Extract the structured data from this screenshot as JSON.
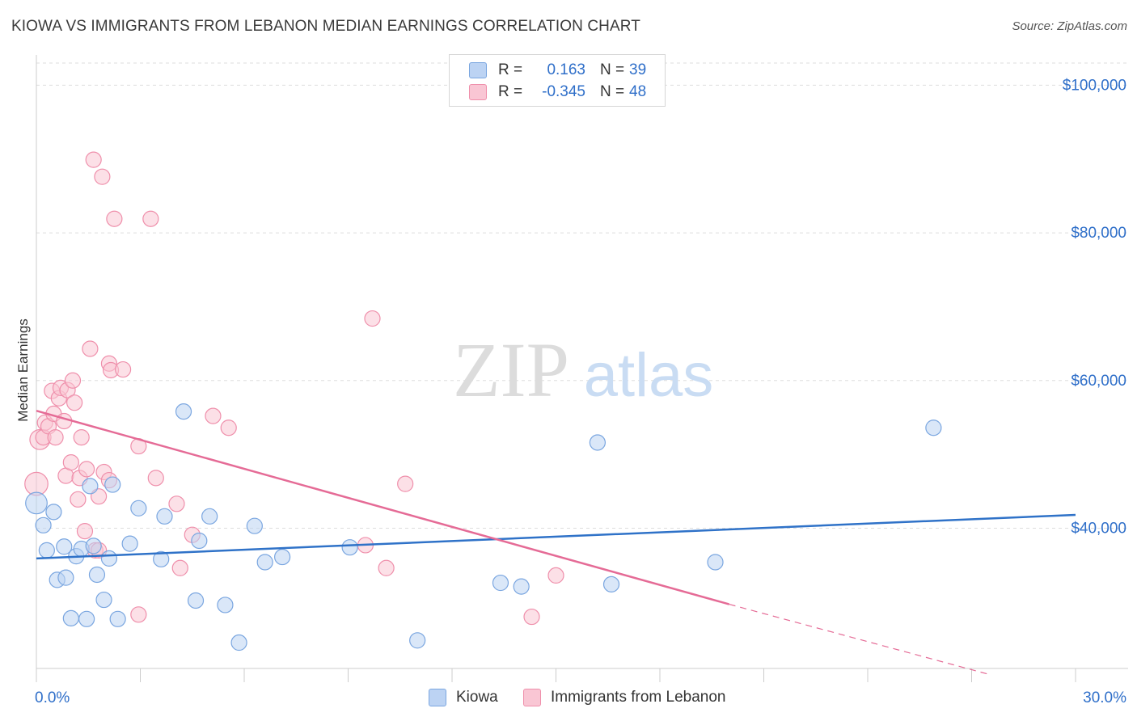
{
  "title": "KIOWA VS IMMIGRANTS FROM LEBANON MEDIAN EARNINGS CORRELATION CHART",
  "source": "Source: ZipAtlas.com",
  "watermark": {
    "zip": "ZIP",
    "atlas": "atlas"
  },
  "legend_top": {
    "rows": [
      {
        "r_label": "R =",
        "r_value": "0.163",
        "n_label": "N =",
        "n_value": "39"
      },
      {
        "r_label": "R =",
        "r_value": "-0.345",
        "n_label": "N =",
        "n_value": "48"
      }
    ]
  },
  "colors": {
    "kiowa_fill": "#bcd3f3",
    "kiowa_stroke": "#7aa6e0",
    "kiowa_line": "#2f72c8",
    "lebanon_fill": "#f9c6d4",
    "lebanon_stroke": "#ef8fab",
    "lebanon_line": "#e56b96",
    "axis_text": "#2f6fc9",
    "grid": "#dddddd"
  },
  "chart_data": {
    "type": "scatter",
    "title": "KIOWA VS IMMIGRANTS FROM LEBANON MEDIAN EARNINGS CORRELATION CHART",
    "xlabel": "",
    "ylabel": "Median Earnings",
    "xlim": [
      0,
      30
    ],
    "ylim": [
      21000,
      103000
    ],
    "x_tick_labels": [
      "0.0%",
      "30.0%"
    ],
    "y_ticks": [
      40000,
      60000,
      80000,
      100000
    ],
    "y_tick_labels": [
      "$40,000",
      "$60,000",
      "$80,000",
      "$100,000"
    ],
    "series": [
      {
        "name": "Kiowa",
        "r": 0.163,
        "n": 39,
        "trend": {
          "x": [
            0,
            30
          ],
          "y": [
            35900,
            41800
          ]
        },
        "points": [
          {
            "x": 0.0,
            "y": 43400,
            "s": 1.4
          },
          {
            "x": 0.2,
            "y": 40400,
            "s": 1
          },
          {
            "x": 0.3,
            "y": 37000,
            "s": 1
          },
          {
            "x": 0.5,
            "y": 42200,
            "s": 1
          },
          {
            "x": 0.6,
            "y": 33000,
            "s": 1
          },
          {
            "x": 0.8,
            "y": 37500,
            "s": 1
          },
          {
            "x": 0.85,
            "y": 33300,
            "s": 1
          },
          {
            "x": 1.0,
            "y": 27800,
            "s": 1
          },
          {
            "x": 1.15,
            "y": 36200,
            "s": 1
          },
          {
            "x": 1.3,
            "y": 37200,
            "s": 1
          },
          {
            "x": 1.45,
            "y": 27700,
            "s": 1
          },
          {
            "x": 1.55,
            "y": 45700,
            "s": 1
          },
          {
            "x": 1.65,
            "y": 37600,
            "s": 1
          },
          {
            "x": 1.75,
            "y": 33700,
            "s": 1
          },
          {
            "x": 1.95,
            "y": 30300,
            "s": 1
          },
          {
            "x": 2.1,
            "y": 35900,
            "s": 1
          },
          {
            "x": 2.2,
            "y": 45900,
            "s": 1
          },
          {
            "x": 2.35,
            "y": 27700,
            "s": 1
          },
          {
            "x": 2.7,
            "y": 37900,
            "s": 1
          },
          {
            "x": 2.95,
            "y": 42700,
            "s": 1
          },
          {
            "x": 3.6,
            "y": 35800,
            "s": 1
          },
          {
            "x": 3.7,
            "y": 41600,
            "s": 1
          },
          {
            "x": 4.25,
            "y": 55800,
            "s": 1
          },
          {
            "x": 4.6,
            "y": 30200,
            "s": 1
          },
          {
            "x": 4.7,
            "y": 38300,
            "s": 1
          },
          {
            "x": 5.0,
            "y": 41600,
            "s": 1
          },
          {
            "x": 5.45,
            "y": 29600,
            "s": 1
          },
          {
            "x": 5.85,
            "y": 24500,
            "s": 1
          },
          {
            "x": 6.6,
            "y": 35400,
            "s": 1
          },
          {
            "x": 6.3,
            "y": 40300,
            "s": 1
          },
          {
            "x": 7.1,
            "y": 36100,
            "s": 1
          },
          {
            "x": 9.05,
            "y": 37400,
            "s": 1
          },
          {
            "x": 11.0,
            "y": 24800,
            "s": 1
          },
          {
            "x": 13.4,
            "y": 32600,
            "s": 1
          },
          {
            "x": 14.0,
            "y": 32100,
            "s": 1
          },
          {
            "x": 16.2,
            "y": 51600,
            "s": 1
          },
          {
            "x": 16.6,
            "y": 32400,
            "s": 1
          },
          {
            "x": 19.6,
            "y": 35400,
            "s": 1
          },
          {
            "x": 25.9,
            "y": 53600,
            "s": 1
          }
        ]
      },
      {
        "name": "Immigrants from Lebanon",
        "r": -0.345,
        "n": 48,
        "trend": {
          "x": [
            0,
            20.0
          ],
          "y": [
            55900,
            29700
          ]
        },
        "trend_dashed": {
          "x": [
            20.0,
            27.5
          ],
          "y": [
            29700,
            20200
          ]
        },
        "points": [
          {
            "x": 0.0,
            "y": 46000,
            "s": 1.5
          },
          {
            "x": 0.1,
            "y": 52000,
            "s": 1.3
          },
          {
            "x": 0.2,
            "y": 52300,
            "s": 1
          },
          {
            "x": 0.25,
            "y": 54300,
            "s": 1
          },
          {
            "x": 0.35,
            "y": 53800,
            "s": 1
          },
          {
            "x": 0.45,
            "y": 58600,
            "s": 1
          },
          {
            "x": 0.5,
            "y": 55500,
            "s": 1
          },
          {
            "x": 0.55,
            "y": 52300,
            "s": 1
          },
          {
            "x": 0.65,
            "y": 57600,
            "s": 1
          },
          {
            "x": 0.7,
            "y": 59000,
            "s": 1
          },
          {
            "x": 0.8,
            "y": 54500,
            "s": 1
          },
          {
            "x": 0.85,
            "y": 47100,
            "s": 1
          },
          {
            "x": 0.9,
            "y": 58700,
            "s": 1
          },
          {
            "x": 1.0,
            "y": 48900,
            "s": 1
          },
          {
            "x": 1.05,
            "y": 60000,
            "s": 1
          },
          {
            "x": 1.1,
            "y": 57000,
            "s": 1
          },
          {
            "x": 1.2,
            "y": 43900,
            "s": 1
          },
          {
            "x": 1.25,
            "y": 46800,
            "s": 1
          },
          {
            "x": 1.3,
            "y": 52300,
            "s": 1
          },
          {
            "x": 1.4,
            "y": 39600,
            "s": 1
          },
          {
            "x": 1.45,
            "y": 48000,
            "s": 1
          },
          {
            "x": 1.55,
            "y": 64300,
            "s": 1
          },
          {
            "x": 1.65,
            "y": 89900,
            "s": 1
          },
          {
            "x": 1.7,
            "y": 37000,
            "s": 1
          },
          {
            "x": 1.8,
            "y": 37000,
            "s": 1
          },
          {
            "x": 1.8,
            "y": 44300,
            "s": 1
          },
          {
            "x": 1.95,
            "y": 47600,
            "s": 1
          },
          {
            "x": 1.9,
            "y": 87600,
            "s": 1
          },
          {
            "x": 2.1,
            "y": 46500,
            "s": 1
          },
          {
            "x": 2.1,
            "y": 62300,
            "s": 1
          },
          {
            "x": 2.15,
            "y": 61400,
            "s": 1
          },
          {
            "x": 2.25,
            "y": 81900,
            "s": 1
          },
          {
            "x": 2.5,
            "y": 61500,
            "s": 1
          },
          {
            "x": 2.95,
            "y": 51100,
            "s": 1
          },
          {
            "x": 2.95,
            "y": 28300,
            "s": 1
          },
          {
            "x": 3.3,
            "y": 81900,
            "s": 1
          },
          {
            "x": 3.45,
            "y": 46800,
            "s": 1
          },
          {
            "x": 4.05,
            "y": 43300,
            "s": 1
          },
          {
            "x": 4.15,
            "y": 34600,
            "s": 1
          },
          {
            "x": 4.5,
            "y": 39100,
            "s": 1
          },
          {
            "x": 5.1,
            "y": 55200,
            "s": 1
          },
          {
            "x": 5.55,
            "y": 53600,
            "s": 1
          },
          {
            "x": 9.7,
            "y": 68400,
            "s": 1
          },
          {
            "x": 9.5,
            "y": 37700,
            "s": 1
          },
          {
            "x": 10.1,
            "y": 34600,
            "s": 1
          },
          {
            "x": 10.65,
            "y": 46000,
            "s": 1
          },
          {
            "x": 14.3,
            "y": 28000,
            "s": 1
          },
          {
            "x": 15.0,
            "y": 33600,
            "s": 1
          }
        ]
      }
    ]
  },
  "legend_bottom": {
    "items": [
      {
        "label": "Kiowa"
      },
      {
        "label": "Immigrants from Lebanon"
      }
    ]
  }
}
